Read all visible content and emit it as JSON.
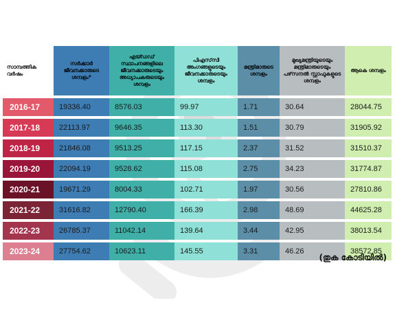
{
  "chart_data": {
    "type": "table",
    "columns": [
      {
        "key": "year",
        "label": "സാമ്പത്തിക വർഷം",
        "color": "#ffffff"
      },
      {
        "key": "govt",
        "label": "സർക്കാർ ജീവനക്കാരുടെ ശമ്പളം*",
        "color": "#3e7cb4"
      },
      {
        "key": "aided",
        "label": "എയ്ഡഡ് സ്ഥാപനങ്ങളിലെ ജീവനക്കാരുടെയും അധ്യാപകരുടെയും ശമ്പളം",
        "color": "#3fafa8"
      },
      {
        "key": "psc",
        "label": "പിഎസ്‌സി അംഗങ്ങളുടെയും ജീവനക്കാരുടെയും ശമ്പളം",
        "color": "#8fe0d6"
      },
      {
        "key": "ministers",
        "label": "മന്ത്രിമാരുടെ ശമ്പളം",
        "color": "#5c8ea8"
      },
      {
        "key": "cm",
        "label": "മുഖ്യമന്ത്രിയുടെയും മന്ത്രിമാരുടെയും പഴ്‌സനൽ സ്റ്റാഫുകളുടെ ശമ്പളം",
        "color": "#b8bec0"
      },
      {
        "key": "total",
        "label": "ആകെ ശമ്പളം",
        "color": "#cfeeb0"
      }
    ],
    "rows": [
      {
        "year": "2016-17",
        "govt": "19336.40",
        "aided": "8576.03",
        "psc": "99.97",
        "ministers": "1.71",
        "cm": "30.64",
        "total": "28044.75",
        "year_color": "#e35a6a"
      },
      {
        "year": "2017-18",
        "govt": "22113.97",
        "aided": "9646.35",
        "psc": "113.30",
        "ministers": "1.51",
        "cm": "30.79",
        "total": "31905.92",
        "year_color": "#d63a55"
      },
      {
        "year": "2018-19",
        "govt": "21846.08",
        "aided": "9513.25",
        "psc": "117.15",
        "ministers": "2.37",
        "cm": "31.52",
        "total": "31510.37",
        "year_color": "#bd2446"
      },
      {
        "year": "2019-20",
        "govt": "22094.19",
        "aided": "9528.62",
        "psc": "115.08",
        "ministers": "2.75",
        "cm": "34.23",
        "total": "31774.87",
        "year_color": "#99153a"
      },
      {
        "year": "2020-21",
        "govt": "19671.29",
        "aided": "8004.33",
        "psc": "102.71",
        "ministers": "1.97",
        "cm": "30.56",
        "total": "27810.86",
        "year_color": "#6b1229"
      },
      {
        "year": "2021-22",
        "govt": "31616.82",
        "aided": "12790.40",
        "psc": "166.39",
        "ministers": "2.98",
        "cm": "48.69",
        "total": "44625.28",
        "year_color": "#7a2436"
      },
      {
        "year": "2022-23",
        "govt": "26785.37",
        "aided": "11042.14",
        "psc": "139.64",
        "ministers": "3.44",
        "cm": "42.95",
        "total": "38013.54",
        "year_color": "#a3354f"
      },
      {
        "year": "2023-24",
        "govt": "27754.62",
        "aided": "10623.11",
        "psc": "145.55",
        "ministers": "3.31",
        "cm": "46.26",
        "total": "38572.85",
        "year_color": "#db7f91"
      }
    ],
    "unit_note": "(തുക കോടിയിൽ)"
  }
}
